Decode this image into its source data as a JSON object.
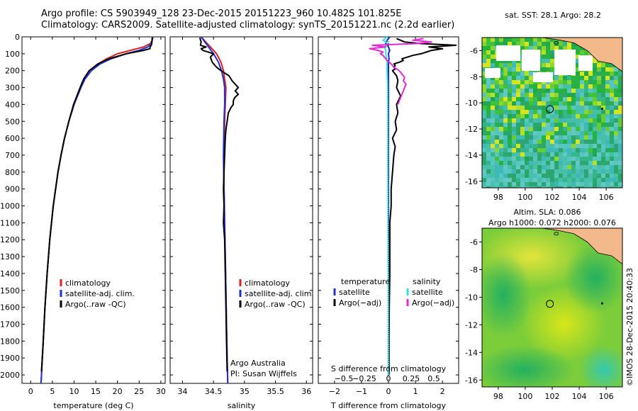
{
  "header": {
    "line1": "Argo profile: CS 5903949_128 23-Dec-2015 20151223_960 10.482S 101.825E",
    "line2": "Climatology: CARS2009. Satellite-adjusted climatology: synTS_20151221.nc (2.2d earlier)"
  },
  "stamp": "©IMOS 28-Dec-2015 20:40:33",
  "colors": {
    "climatology": "#e0201e",
    "satellite_adj": "#1d2fd6",
    "argo": "#000000",
    "satellite_salinity": "#2fe0e6",
    "argo_salinity_adj": "#e22bd4",
    "land": "#f4b98a"
  },
  "chart_data": [
    {
      "id": "temperature",
      "type": "line",
      "xlabel": "temperature (deg C)",
      "ylabel": "",
      "xlim": [
        -2,
        31
      ],
      "ylim": [
        2050,
        0
      ],
      "xticks": [
        0,
        5,
        10,
        15,
        20,
        25,
        30
      ],
      "yticks": [
        0,
        100,
        200,
        300,
        400,
        500,
        600,
        700,
        800,
        900,
        1000,
        1100,
        1200,
        1300,
        1400,
        1500,
        1600,
        1700,
        1800,
        1900,
        2000
      ],
      "legend": [
        "climatology",
        "satellite-adj. clim.",
        "Argo(..raw -QC)"
      ],
      "series": [
        {
          "name": "climatology",
          "color": "#e0201e",
          "depth": [
            0,
            20,
            40,
            60,
            80,
            100,
            130,
            160,
            200,
            250,
            300,
            400,
            500,
            600,
            700,
            800,
            1000,
            1200,
            1400,
            1600,
            1800,
            2000,
            2050
          ],
          "values": [
            28.2,
            28.0,
            27.6,
            26.0,
            23.0,
            20.0,
            17.5,
            15.5,
            13.5,
            12.3,
            11.5,
            10.0,
            8.8,
            7.8,
            7.0,
            6.3,
            5.2,
            4.4,
            3.8,
            3.3,
            2.9,
            2.5,
            2.4
          ]
        },
        {
          "name": "satellite-adj. clim.",
          "color": "#1d2fd6",
          "depth": [
            0,
            20,
            40,
            60,
            80,
            100,
            130,
            160,
            200,
            250,
            300,
            400,
            500,
            600,
            700,
            800,
            1000,
            1200,
            1400,
            1600,
            1800,
            2000,
            2050
          ],
          "values": [
            28.1,
            28.0,
            27.8,
            27.0,
            25.0,
            22.0,
            18.5,
            16.0,
            14.0,
            12.5,
            11.6,
            10.0,
            8.8,
            7.8,
            7.0,
            6.3,
            5.2,
            4.4,
            3.8,
            3.3,
            2.9,
            2.5,
            2.4
          ]
        },
        {
          "name": "Argo(..raw -QC)",
          "color": "#000000",
          "depth": [
            5,
            20,
            40,
            50,
            60,
            70,
            80,
            100,
            130,
            160,
            200,
            250,
            300,
            400,
            500,
            600,
            700,
            800,
            1000,
            1200,
            1400,
            1600,
            1800,
            1980
          ],
          "values": [
            28.0,
            28.0,
            27.9,
            27.8,
            27.5,
            27.5,
            26.0,
            22.0,
            18.0,
            15.5,
            13.5,
            12.2,
            11.4,
            9.9,
            8.8,
            7.8,
            7.0,
            6.3,
            5.2,
            4.4,
            3.8,
            3.3,
            2.9,
            2.5
          ]
        }
      ]
    },
    {
      "id": "salinity",
      "type": "line",
      "xlabel": "salinity",
      "ylabel": "",
      "xlim": [
        33.8,
        36.1
      ],
      "ylim": [
        2050,
        0
      ],
      "xticks": [
        34,
        34.5,
        35,
        35.5,
        36
      ],
      "legend": [
        "climatology",
        "satellite-adj. clim.",
        "Argo(..raw -QC)"
      ],
      "annotation": [
        "Argo Australia",
        "PI: Susan Wijffels"
      ],
      "series": [
        {
          "name": "climatology",
          "color": "#e0201e",
          "depth": [
            0,
            20,
            40,
            60,
            80,
            100,
            150,
            200,
            250,
            300,
            400,
            500,
            700,
            900,
            1100,
            1300,
            1500,
            1700,
            1900,
            2050
          ],
          "values": [
            34.3,
            34.35,
            34.4,
            34.45,
            34.5,
            34.55,
            34.62,
            34.66,
            34.68,
            34.7,
            34.69,
            34.68,
            34.67,
            34.67,
            34.68,
            34.69,
            34.7,
            34.71,
            34.72,
            34.73
          ]
        },
        {
          "name": "satellite-adj. clim.",
          "color": "#1d2fd6",
          "depth": [
            0,
            20,
            40,
            60,
            80,
            100,
            150,
            200,
            250,
            300,
            400,
            500,
            700,
            900,
            1100,
            1300,
            1500,
            1700,
            1900,
            2050
          ],
          "values": [
            34.3,
            34.34,
            34.38,
            34.42,
            34.46,
            34.5,
            34.58,
            34.63,
            34.66,
            34.68,
            34.68,
            34.67,
            34.66,
            34.67,
            34.68,
            34.69,
            34.7,
            34.71,
            34.72,
            34.73
          ]
        },
        {
          "name": "Argo(..raw -QC)",
          "color": "#000000",
          "depth": [
            5,
            30,
            50,
            60,
            70,
            80,
            100,
            120,
            150,
            180,
            200,
            230,
            260,
            280,
            300,
            320,
            340,
            360,
            380,
            400,
            420,
            450,
            500,
            550,
            600,
            700,
            800,
            900,
            1000,
            1100,
            1200,
            1400,
            1600,
            1800,
            1980
          ],
          "values": [
            34.28,
            34.3,
            34.29,
            34.38,
            34.3,
            34.33,
            34.5,
            34.45,
            34.48,
            34.55,
            34.62,
            34.75,
            34.8,
            34.85,
            34.9,
            34.85,
            34.9,
            34.84,
            34.82,
            34.82,
            34.78,
            34.74,
            34.72,
            34.7,
            34.69,
            34.68,
            34.67,
            34.66,
            34.67,
            34.66,
            34.68,
            34.69,
            34.7,
            34.71,
            34.72
          ]
        }
      ]
    },
    {
      "id": "difference",
      "type": "line",
      "xlabel": "T difference from climatology",
      "xlabel_top": "S difference from climatology",
      "xlim": [
        -2.6,
        2.6
      ],
      "ylim": [
        2050,
        0
      ],
      "xticks": [
        -2,
        -1,
        0,
        1,
        2
      ],
      "xtick_labels": [
        "−2",
        "−1",
        "0",
        "1",
        "2"
      ],
      "sticks_labels": [
        "−0.5",
        "−0.25",
        "0",
        "0.25",
        "0.5"
      ],
      "legend_left_title": "temperature",
      "legend_right_title": "salinity",
      "legend": [
        "satellite",
        "Argo(−adj)",
        "satellite",
        "Argo(−adj)"
      ],
      "series": [
        {
          "name": "satellite T",
          "color": "#1d2fd6",
          "depth": [
            0,
            20,
            40,
            60,
            80,
            100,
            130,
            160,
            200,
            300,
            500,
            800,
            1200,
            1600,
            2000
          ],
          "values": [
            0.05,
            -0.05,
            -0.1,
            0.0,
            0.05,
            0.0,
            0.02,
            0.0,
            0.0,
            0.0,
            0.0,
            0.0,
            0.0,
            0.0,
            0.0
          ]
        },
        {
          "name": "Argo T",
          "color": "#000000",
          "depth": [
            10,
            30,
            40,
            50,
            60,
            70,
            80,
            90,
            100,
            110,
            120,
            130,
            140,
            150,
            160,
            170,
            180,
            190,
            200,
            230,
            260,
            300,
            350,
            400,
            450,
            500,
            550,
            600,
            650,
            700,
            800,
            900,
            1000,
            1100,
            1200,
            1400,
            1600,
            1800,
            2000
          ],
          "values": [
            0.3,
            0.6,
            1.2,
            2.5,
            1.5,
            2.0,
            1.6,
            1.4,
            1.2,
            0.9,
            0.7,
            0.5,
            0.55,
            0.4,
            0.2,
            0.25,
            0.2,
            0.25,
            0.15,
            0.3,
            0.35,
            0.3,
            0.45,
            0.3,
            0.35,
            0.25,
            0.3,
            0.15,
            0.25,
            0.2,
            0.15,
            0.1,
            0.1,
            0.05,
            0.05,
            0.05,
            0.03,
            0.02,
            0.02
          ]
        },
        {
          "name": "satellite S",
          "color": "#2fe0e6",
          "depth": [
            0,
            20,
            40,
            60,
            80,
            100,
            150,
            200,
            300,
            500,
            800,
            1200,
            1600,
            2000
          ],
          "values": [
            -0.05,
            -0.2,
            0.0,
            -0.15,
            -0.1,
            -0.1,
            -0.05,
            -0.05,
            -0.03,
            -0.02,
            -0.02,
            -0.01,
            0.0,
            0.0
          ]
        },
        {
          "name": "Argo S",
          "color": "#e22bd4",
          "depth": [
            10,
            20,
            30,
            40,
            50,
            60,
            70,
            80,
            90,
            100,
            110,
            120,
            140,
            160,
            180,
            200,
            220,
            240,
            260,
            280,
            300,
            320,
            340,
            360,
            380,
            400
          ],
          "values": [
            1.3,
            0.9,
            1.6,
            1.0,
            -0.6,
            -0.1,
            -0.7,
            -0.4,
            -0.2,
            -0.3,
            -0.2,
            -0.15,
            -0.05,
            0.1,
            0.2,
            0.4,
            0.5,
            0.6,
            0.55,
            0.65,
            0.6,
            0.55,
            0.5,
            0.45,
            0.4,
            0.35
          ]
        }
      ]
    },
    {
      "id": "sst_map",
      "type": "heatmap",
      "title": "sat. SST: 28.1  Argo: 28.2",
      "xlim": [
        96.8,
        107.2
      ],
      "ylim": [
        -16.5,
        -5.0
      ],
      "xticks": [
        98,
        100,
        102,
        104,
        106
      ],
      "yticks": [
        -6,
        -8,
        -10,
        -12,
        -14,
        -16
      ],
      "argo_position": {
        "lon": 101.825,
        "lat": -10.482
      }
    },
    {
      "id": "sla_map",
      "type": "heatmap",
      "title": "Altim. SLA: 0.086",
      "subtitle": "Argo h1000: 0.072 h2000: 0.076",
      "xlim": [
        96.8,
        107.2
      ],
      "ylim": [
        -16.5,
        -5.0
      ],
      "xticks": [
        98,
        100,
        102,
        104,
        106
      ],
      "yticks": [
        -6,
        -8,
        -10,
        -12,
        -14,
        -16
      ],
      "argo_position": {
        "lon": 101.825,
        "lat": -10.482
      }
    }
  ]
}
